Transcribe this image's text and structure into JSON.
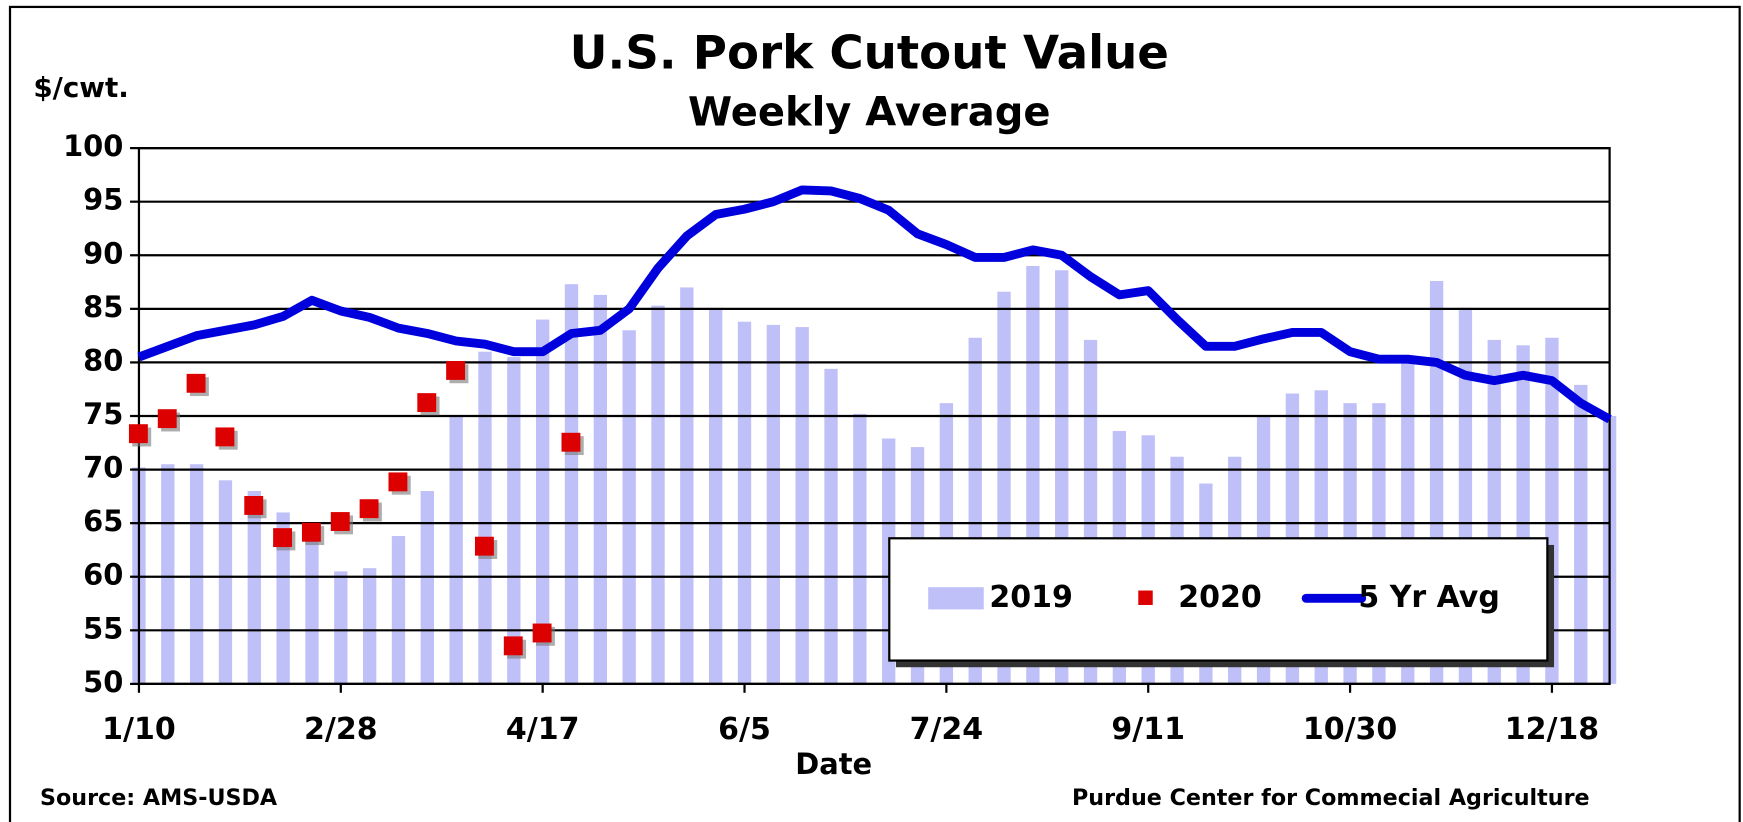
{
  "chart_data": {
    "type": "bar_scatter_line",
    "title": "U.S. Pork Cutout Value",
    "subtitle": "Weekly Average",
    "y_label": "$/cwt.",
    "x_label": "Date",
    "source": "Source:  AMS-USDA",
    "credit": "Purdue Center for Commecial Agriculture",
    "categories": [
      "1/10",
      null,
      null,
      null,
      null,
      null,
      null,
      "2/28",
      null,
      null,
      null,
      null,
      null,
      null,
      "4/17",
      null,
      null,
      null,
      null,
      null,
      null,
      "6/5",
      null,
      null,
      null,
      null,
      null,
      null,
      "7/24",
      null,
      null,
      null,
      null,
      null,
      null,
      "9/11",
      null,
      null,
      null,
      null,
      null,
      null,
      "10/30",
      null,
      null,
      null,
      null,
      null,
      null,
      "12/18",
      null,
      null
    ],
    "ylim": [
      50,
      100
    ],
    "yticks": [
      50,
      55,
      60,
      65,
      70,
      75,
      80,
      85,
      90,
      95,
      100
    ],
    "grid": true,
    "legend": "lower right",
    "series": [
      {
        "name": "2019",
        "kind": "bar",
        "color": "#c0c0f8",
        "values": [
          70.2,
          70.5,
          70.5,
          69,
          68,
          66,
          64.5,
          60.5,
          60.8,
          63.8,
          68,
          75,
          81,
          80.5,
          84,
          87.3,
          86.3,
          83,
          85.3,
          87,
          85,
          83.8,
          83.5,
          83.3,
          79.4,
          75.2,
          72.9,
          72.1,
          76.2,
          82.3,
          86.6,
          89,
          88.6,
          82.1,
          73.6,
          73.2,
          71.2,
          68.7,
          71.2,
          75,
          77.1,
          77.4,
          76.2,
          76.2,
          80,
          87.6,
          85.1,
          82.1,
          81.6,
          82.3,
          77.9,
          75
        ]
      },
      {
        "name": "2020",
        "kind": "scatter",
        "color": "#dd0000",
        "values": [
          73.3,
          74.7,
          78,
          73,
          66.6,
          63.6,
          64.1,
          65.1,
          66.3,
          68.8,
          76.2,
          79.2,
          62.8,
          53.5,
          54.7,
          72.5,
          null,
          null,
          null,
          null,
          null,
          null,
          null,
          null,
          null,
          null,
          null,
          null,
          null,
          null,
          null,
          null,
          null,
          null,
          null,
          null,
          null,
          null,
          null,
          null,
          null,
          null,
          null,
          null,
          null,
          null,
          null,
          null,
          null,
          null,
          null,
          null
        ]
      },
      {
        "name": "5 Yr Avg",
        "kind": "line",
        "color": "#0000dd",
        "values": [
          80.5,
          81.5,
          82.5,
          83,
          83.5,
          84.3,
          85.8,
          84.8,
          84.2,
          83.2,
          82.7,
          82,
          81.7,
          81,
          81,
          82.7,
          83,
          85,
          88.8,
          91.8,
          93.8,
          94.3,
          95,
          96.1,
          96,
          95.3,
          94.2,
          92,
          91,
          89.8,
          89.8,
          90.5,
          90,
          88,
          86.3,
          86.7,
          84,
          81.5,
          81.5,
          82.2,
          82.8,
          82.8,
          81,
          80.3,
          80.3,
          80,
          78.8,
          78.3,
          78.8,
          78.3,
          76.2,
          74.7
        ]
      }
    ]
  }
}
